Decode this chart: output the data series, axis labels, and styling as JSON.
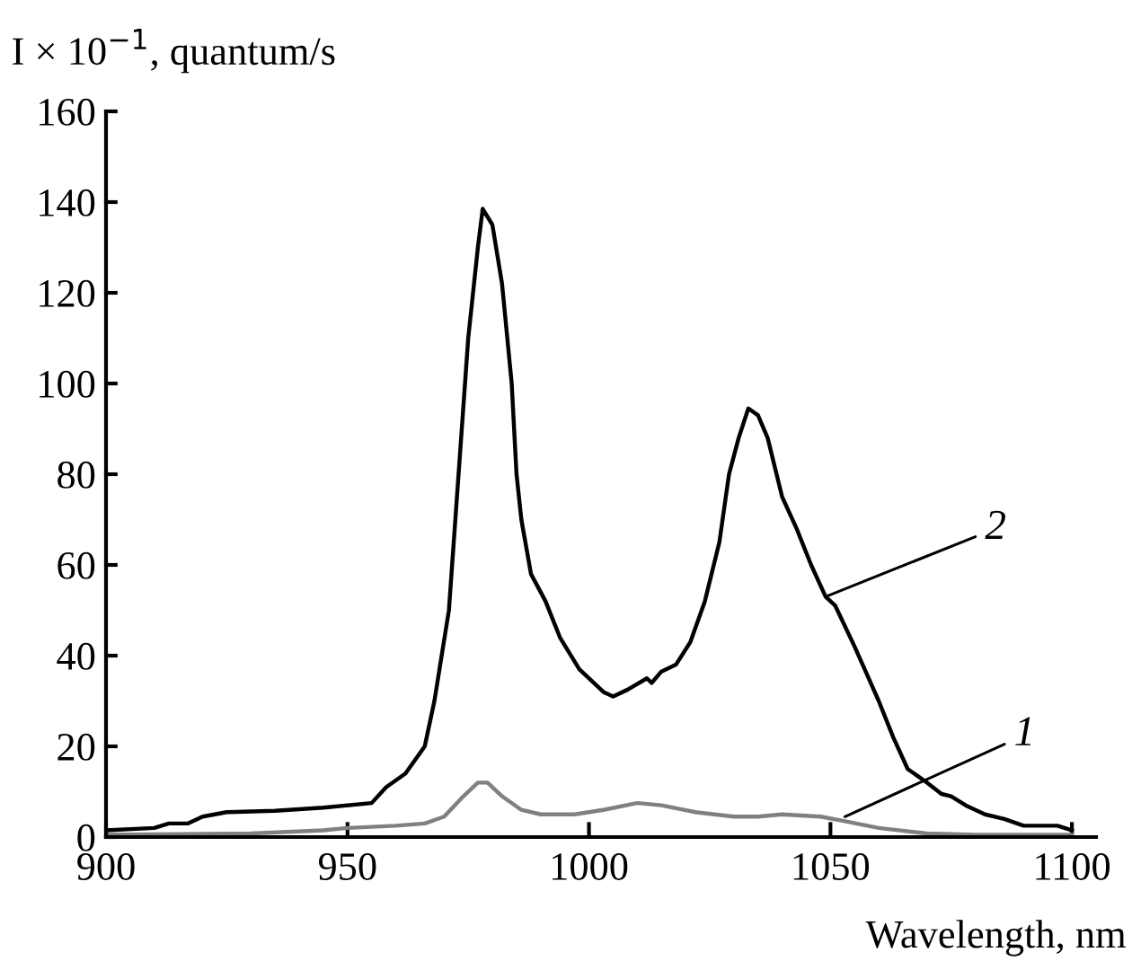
{
  "chart_data": {
    "type": "line",
    "ylabel": "I × 10$^{−1}$, quantum/s",
    "xlabel": "Wavelength, nm",
    "xlim": [
      900,
      1105
    ],
    "xticks": [
      900,
      950,
      1000,
      1050,
      1100
    ],
    "ylim": [
      0,
      160
    ],
    "yticks": [
      0,
      20,
      40,
      60,
      80,
      100,
      120,
      140,
      160
    ],
    "grid": false,
    "legend": false,
    "marker": "none",
    "line_style": "solid",
    "series": [
      {
        "color": "#000000",
        "x": [
          900,
          910,
          913,
          917,
          920,
          925,
          935,
          945,
          955,
          958,
          962,
          966,
          968,
          971,
          973,
          975,
          977,
          978,
          980,
          982,
          984,
          985,
          986,
          988,
          991,
          994,
          998,
          1003,
          1005,
          1008,
          1012,
          1013,
          1015,
          1018,
          1021,
          1024,
          1027,
          1029,
          1031,
          1033,
          1035,
          1037,
          1040,
          1043,
          1046,
          1049,
          1051,
          1055,
          1060,
          1063,
          1066,
          1070,
          1073,
          1075,
          1078,
          1082,
          1086,
          1090,
          1097,
          1100
        ],
        "values": [
          1.5,
          2,
          3,
          3,
          4.5,
          5.5,
          5.8,
          6.5,
          7.5,
          11,
          14,
          20,
          30,
          50,
          80,
          110,
          130,
          138.5,
          135,
          122,
          100,
          80,
          70,
          58,
          52,
          44,
          37,
          32,
          31,
          32.5,
          35,
          34,
          36.5,
          38,
          43,
          52,
          65,
          80,
          88,
          94.5,
          93,
          88,
          75,
          68,
          60,
          53,
          51,
          42,
          30,
          22,
          15,
          12,
          9.5,
          9,
          7,
          5,
          4,
          2.5,
          2.5,
          1.5
        ]
      },
      {
        "color": "#808080",
        "x": [
          900,
          930,
          945,
          950,
          960,
          966,
          970,
          974,
          977,
          979,
          982,
          986,
          990,
          997,
          1003,
          1010,
          1015,
          1022,
          1030,
          1035,
          1040,
          1048,
          1053,
          1060,
          1070,
          1080,
          1100
        ],
        "values": [
          0.5,
          0.8,
          1.5,
          2,
          2.5,
          3,
          4.5,
          9,
          12,
          12,
          9,
          6,
          5,
          5,
          6,
          7.5,
          7,
          5.5,
          4.5,
          4.5,
          5,
          4.5,
          3.5,
          2,
          0.8,
          0.5,
          0.5
        ]
      }
    ],
    "annotations": [
      {
        "text": "2",
        "x": 1049,
        "y": 53
      },
      {
        "text": "1",
        "x": 1053,
        "y": 4.5
      }
    ]
  }
}
